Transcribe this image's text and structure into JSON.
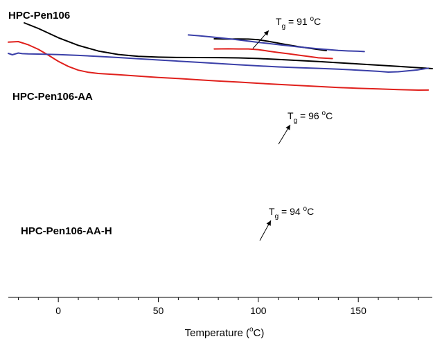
{
  "chart_data": {
    "type": "line",
    "xlabel": "Temperature (°C)",
    "xlabel_parts": {
      "pre": "Temperature (",
      "sup": "o",
      "post": "C)"
    },
    "xlim": [
      -25,
      187
    ],
    "x_ticks": [
      0,
      50,
      100,
      150
    ],
    "x_minor_step": 10,
    "y_axis": "none",
    "grid": false,
    "series": [
      {
        "name": "HPC-Pen106",
        "color": "#000000",
        "x": [
          -17,
          -10,
          0,
          10,
          20,
          30,
          40,
          50,
          60,
          70,
          80,
          90,
          100,
          110,
          120,
          130,
          140,
          150,
          160,
          170,
          187
        ],
        "y": [
          -33.0,
          -41.0,
          -54.4,
          -65.4,
          -73.6,
          -78.6,
          -81.3,
          -82.4,
          -82.9,
          -83.0,
          -83.1,
          -83.5,
          -84.4,
          -85.7,
          -87.2,
          -88.8,
          -90.5,
          -92.2,
          -94.0,
          -95.8,
          -99.0
        ],
        "tg_label": {
          "pre": "T",
          "sub": "g",
          "mid": " = 91 ",
          "sup": "o",
          "post": "C"
        },
        "inset": {
          "x": [
            78,
            85,
            90,
            95,
            100,
            105,
            110,
            115,
            120,
            125,
            130,
            134
          ],
          "y": [
            -56.0,
            -56.4,
            -56.3,
            -56.4,
            -57.3,
            -59.6,
            -62.2,
            -64.8,
            -67.2,
            -69.4,
            -71.4,
            -73.0
          ]
        }
      },
      {
        "name": "HPC-Pen106-AA",
        "color": "#e0201c",
        "x": [
          -25,
          -20,
          -15,
          -10,
          -5,
          0,
          5,
          10,
          15,
          20,
          30,
          40,
          50,
          60,
          70,
          80,
          90,
          100,
          110,
          120,
          130,
          140,
          150,
          160,
          170,
          180,
          185
        ],
        "y": [
          -35.8,
          -35.0,
          -39.6,
          -46.1,
          -54.5,
          -63.5,
          -70.8,
          -76.2,
          -79.3,
          -81.0,
          -82.8,
          -84.8,
          -86.7,
          -88.3,
          -90.1,
          -91.9,
          -93.4,
          -95.1,
          -96.8,
          -98.2,
          -99.7,
          -101.2,
          -102.4,
          -103.3,
          -104.3,
          -105.0,
          -104.9
        ],
        "tg_label": {
          "pre": "T",
          "sub": "g",
          "mid": " = 96 ",
          "sup": "o",
          "post": "C"
        },
        "inset": {
          "x": [
            78,
            85,
            90,
            95,
            100,
            105,
            110,
            115,
            120,
            125,
            130,
            137
          ],
          "y": [
            -45.6,
            -45.4,
            -45.6,
            -45.6,
            -46.6,
            -48.7,
            -50.7,
            -52.5,
            -54.5,
            -56.4,
            -58.4,
            -59.5
          ]
        }
      },
      {
        "name": "HPC-Pen106-AA-H",
        "color": "#3a3fa8",
        "x": [
          -25,
          -23,
          -20,
          -18,
          -15,
          -10,
          0,
          10,
          20,
          30,
          40,
          50,
          60,
          70,
          80,
          90,
          100,
          110,
          120,
          130,
          140,
          150,
          160,
          165,
          170,
          175,
          180,
          185
        ],
        "y": [
          -58.0,
          -60.0,
          -57.5,
          -58.4,
          -58.8,
          -59.0,
          -59.7,
          -60.9,
          -62.4,
          -64.0,
          -65.8,
          -67.5,
          -69.2,
          -70.9,
          -72.6,
          -74.4,
          -76.0,
          -77.5,
          -78.6,
          -79.6,
          -80.8,
          -82.2,
          -83.9,
          -85.0,
          -84.5,
          -83.1,
          -81.7,
          -79.4
        ],
        "tg_label": {
          "pre": "T",
          "sub": "g",
          "mid": " = 94 ",
          "sup": "o",
          "post": "C"
        },
        "inset": {
          "x": [
            65,
            70,
            80,
            90,
            100,
            110,
            120,
            130,
            140,
            145,
            150,
            153
          ],
          "y": [
            -31.4,
            -32.5,
            -35.2,
            -38.5,
            -42.1,
            -45.4,
            -48.6,
            -51.4,
            -53.8,
            -54.5,
            -54.9,
            -55.4
          ]
        }
      }
    ]
  }
}
